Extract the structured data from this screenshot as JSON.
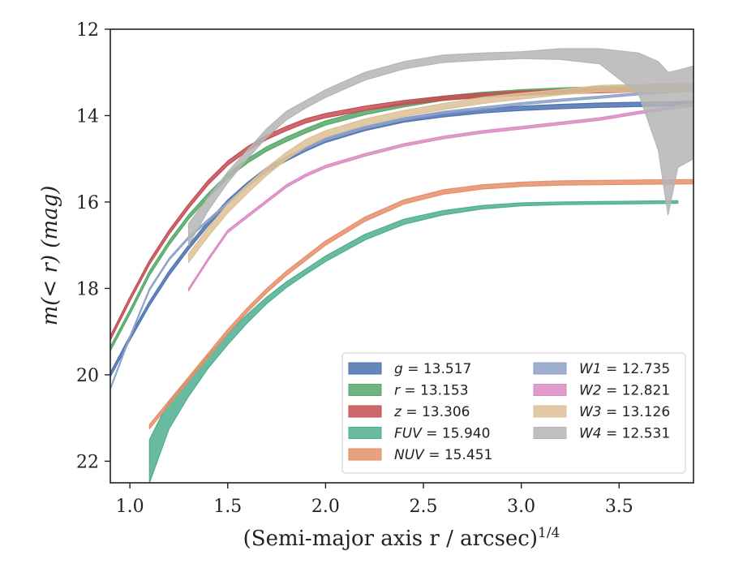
{
  "chart_data": {
    "type": "area",
    "xlabel": "(Semi-major axis r / arcsec)",
    "xlabel_sup": "1/4",
    "ylabel": "m(< r) (mag)",
    "xlim": [
      0.9,
      3.88
    ],
    "ylim": [
      22.5,
      12
    ],
    "y_inverted": true,
    "xticks": [
      "1.0",
      "1.5",
      "2.0",
      "2.5",
      "3.0",
      "3.5"
    ],
    "yticks": [
      "12",
      "14",
      "16",
      "18",
      "20",
      "22"
    ],
    "grid": false,
    "legend_position": "lower-right",
    "series": [
      {
        "name": "g",
        "legend": "g = 13.517",
        "color": "#4c72b0",
        "width": 0.1,
        "x": [
          0.9,
          1.0,
          1.1,
          1.2,
          1.3,
          1.4,
          1.5,
          1.6,
          1.7,
          1.8,
          1.9,
          2.0,
          2.2,
          2.4,
          2.6,
          2.8,
          3.0,
          3.2,
          3.4,
          3.6,
          3.88
        ],
        "y": [
          19.95,
          19.1,
          18.3,
          17.6,
          17.0,
          16.45,
          15.95,
          15.55,
          15.2,
          14.95,
          14.72,
          14.52,
          14.25,
          14.05,
          13.93,
          13.84,
          13.78,
          13.74,
          13.71,
          13.69,
          13.67
        ]
      },
      {
        "name": "r",
        "legend": "r = 13.153",
        "color": "#55a868",
        "width": 0.1,
        "x": [
          0.9,
          1.0,
          1.1,
          1.2,
          1.3,
          1.4,
          1.5,
          1.6,
          1.7,
          1.8,
          1.9,
          2.0,
          2.2,
          2.4,
          2.6,
          2.8,
          3.0,
          3.2,
          3.4,
          3.6,
          3.88
        ],
        "y": [
          19.35,
          18.5,
          17.6,
          16.9,
          16.3,
          15.8,
          15.35,
          15.0,
          14.72,
          14.5,
          14.3,
          14.12,
          13.88,
          13.7,
          13.55,
          13.46,
          13.4,
          13.36,
          13.33,
          13.31,
          13.3
        ]
      },
      {
        "name": "z",
        "legend": "z = 13.306",
        "color": "#c44e52",
        "width": 0.1,
        "x": [
          0.9,
          1.0,
          1.1,
          1.2,
          1.3,
          1.4,
          1.5,
          1.6,
          1.7,
          1.8,
          1.9,
          2.0,
          2.2,
          2.4,
          2.6,
          2.8,
          3.0,
          3.2,
          3.4,
          3.6,
          3.88
        ],
        "y": [
          19.1,
          18.2,
          17.35,
          16.65,
          16.05,
          15.5,
          15.05,
          14.72,
          14.45,
          14.25,
          14.07,
          13.95,
          13.78,
          13.65,
          13.55,
          13.48,
          13.43,
          13.4,
          13.37,
          13.35,
          13.33
        ]
      },
      {
        "name": "FUV",
        "legend": "FUV = 15.940",
        "color": "#4daf8f",
        "x": [
          1.1,
          1.2,
          1.3,
          1.4,
          1.5,
          1.6,
          1.7,
          1.8,
          1.9,
          2.0,
          2.2,
          2.4,
          2.6,
          2.8,
          3.0,
          3.2,
          3.4,
          3.6,
          3.8
        ],
        "y": [
          21.5,
          20.6,
          20.1,
          19.55,
          19.05,
          18.6,
          18.2,
          17.85,
          17.55,
          17.25,
          16.75,
          16.4,
          16.2,
          16.08,
          16.02,
          16.0,
          15.99,
          15.98,
          15.97
        ],
        "lower": [
          22.5,
          21.25,
          20.5,
          19.85,
          19.3,
          18.8,
          18.35,
          17.98,
          17.67,
          17.38,
          16.88,
          16.52,
          16.3,
          16.16,
          16.09,
          16.06,
          16.05,
          16.04,
          16.03
        ]
      },
      {
        "name": "NUV",
        "legend": "NUV = 15.451",
        "color": "#e58f6a",
        "width": 0.1,
        "x": [
          1.1,
          1.2,
          1.3,
          1.4,
          1.5,
          1.6,
          1.7,
          1.8,
          1.9,
          2.0,
          2.2,
          2.4,
          2.6,
          2.8,
          3.0,
          3.2,
          3.4,
          3.6,
          3.88
        ],
        "y": [
          21.15,
          20.6,
          20.05,
          19.5,
          18.95,
          18.45,
          18.0,
          17.6,
          17.25,
          16.9,
          16.35,
          15.95,
          15.72,
          15.6,
          15.54,
          15.51,
          15.5,
          15.49,
          15.48
        ]
      },
      {
        "name": "W1",
        "legend": "W1 = 12.735",
        "color": "#8ea1c8",
        "width": 0.05,
        "x": [
          0.9,
          1.0,
          1.1,
          1.2,
          1.3,
          1.4,
          1.5,
          1.6,
          1.7,
          1.8,
          1.9,
          2.0,
          2.2,
          2.4,
          2.6,
          2.8,
          3.0,
          3.2,
          3.4,
          3.6,
          3.88
        ],
        "y": [
          20.3,
          19.1,
          18.0,
          17.3,
          16.8,
          16.4,
          16.0,
          15.6,
          15.25,
          14.95,
          14.72,
          14.52,
          14.25,
          14.05,
          13.9,
          13.8,
          13.7,
          13.62,
          13.55,
          13.47,
          13.38
        ]
      },
      {
        "name": "W2",
        "legend": "W2 = 12.821",
        "color": "#da8bc3",
        "width": 0.06,
        "x": [
          1.3,
          1.4,
          1.5,
          1.6,
          1.7,
          1.8,
          1.9,
          2.0,
          2.2,
          2.4,
          2.6,
          2.8,
          3.0,
          3.2,
          3.4,
          3.6,
          3.88
        ],
        "y": [
          18.0,
          17.3,
          16.65,
          16.3,
          15.95,
          15.6,
          15.35,
          15.15,
          14.88,
          14.65,
          14.48,
          14.35,
          14.25,
          14.15,
          14.05,
          13.9,
          13.72
        ]
      },
      {
        "name": "W3",
        "legend": "W3 = 13.126",
        "color": "#dcc195",
        "x": [
          1.3,
          1.4,
          1.5,
          1.6,
          1.7,
          1.8,
          1.9,
          2.0,
          2.2,
          2.4,
          2.6,
          2.8,
          3.0,
          3.2,
          3.4,
          3.6,
          3.88
        ],
        "y": [
          17.2,
          16.6,
          16.05,
          15.6,
          15.2,
          14.85,
          14.55,
          14.35,
          14.08,
          13.88,
          13.72,
          13.58,
          13.48,
          13.4,
          13.3,
          13.28,
          13.25
        ],
        "lower": [
          17.4,
          16.8,
          16.25,
          15.8,
          15.38,
          15.02,
          14.72,
          14.5,
          14.22,
          14.02,
          13.86,
          13.72,
          13.62,
          13.52,
          13.45,
          13.45,
          13.45
        ]
      },
      {
        "name": "W4",
        "legend": "W4 = 12.531",
        "color": "#b5b5b5",
        "x": [
          1.3,
          1.4,
          1.5,
          1.6,
          1.7,
          1.8,
          1.9,
          2.0,
          2.2,
          2.4,
          2.6,
          2.8,
          3.0,
          3.2,
          3.4,
          3.6,
          3.7,
          3.75,
          3.8,
          3.88
        ],
        "y": [
          16.5,
          15.9,
          15.3,
          14.8,
          14.3,
          13.9,
          13.65,
          13.4,
          13.0,
          12.75,
          12.6,
          12.55,
          12.52,
          12.45,
          12.45,
          12.55,
          12.75,
          13.0,
          12.95,
          12.85
        ],
        "lower": [
          17.0,
          16.2,
          15.55,
          15.0,
          14.5,
          14.1,
          13.82,
          13.58,
          13.18,
          12.92,
          12.77,
          12.72,
          12.68,
          12.7,
          12.8,
          13.5,
          14.8,
          16.3,
          15.2,
          15.0
        ]
      }
    ]
  }
}
